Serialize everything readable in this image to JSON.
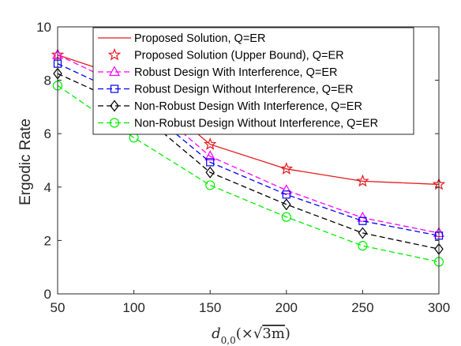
{
  "chart_data": {
    "type": "line",
    "x": [
      50,
      100,
      150,
      200,
      250,
      300
    ],
    "xticks": [
      50,
      100,
      150,
      200,
      250,
      300
    ],
    "yticks": [
      0,
      2,
      4,
      6,
      8,
      10
    ],
    "xlim": [
      50,
      300
    ],
    "ylim": [
      0,
      10
    ],
    "ylabel": "Ergodic Rate",
    "xlabel": "d0,0(×√3m)",
    "xlabel_parts": {
      "var": "d",
      "sub": "0,0",
      "paren_open": "(×",
      "sqrt": "√",
      "radicand": "3m",
      "paren_close": ")"
    },
    "legend_position": "top-right",
    "grid": false,
    "series": [
      {
        "name": "Proposed Solution, Q=ER",
        "color": "#e31a1c",
        "dash": "solid",
        "marker": "none",
        "values": [
          8.95,
          8.0,
          5.6,
          4.68,
          4.22,
          4.1
        ]
      },
      {
        "name": "Proposed Solution (Upper Bound), Q=ER",
        "color": "#e31a1c",
        "dash": "none",
        "marker": "star",
        "values": [
          8.95,
          8.0,
          5.6,
          4.68,
          4.22,
          4.1
        ]
      },
      {
        "name": "Robust Design With Interference, Q=ER",
        "color": "#ff00ff",
        "dash": "dashed",
        "marker": "triangle",
        "values": [
          8.95,
          7.6,
          5.15,
          3.88,
          2.85,
          2.28
        ]
      },
      {
        "name": "Robust Design Without Interference, Q=ER",
        "color": "#0000ff",
        "dash": "dashed",
        "marker": "square",
        "values": [
          8.62,
          7.3,
          4.93,
          3.72,
          2.73,
          2.18
        ]
      },
      {
        "name": "Non-Robust Design With Interference, Q=ER",
        "color": "#000000",
        "dash": "dashed",
        "marker": "diamond",
        "values": [
          8.25,
          6.95,
          4.55,
          3.35,
          2.28,
          1.68
        ]
      },
      {
        "name": "Non-Robust Design Without Interference, Q=ER",
        "color": "#00ee00",
        "dash": "dashed",
        "marker": "circle",
        "values": [
          7.8,
          5.85,
          4.07,
          2.88,
          1.8,
          1.2
        ]
      }
    ]
  }
}
